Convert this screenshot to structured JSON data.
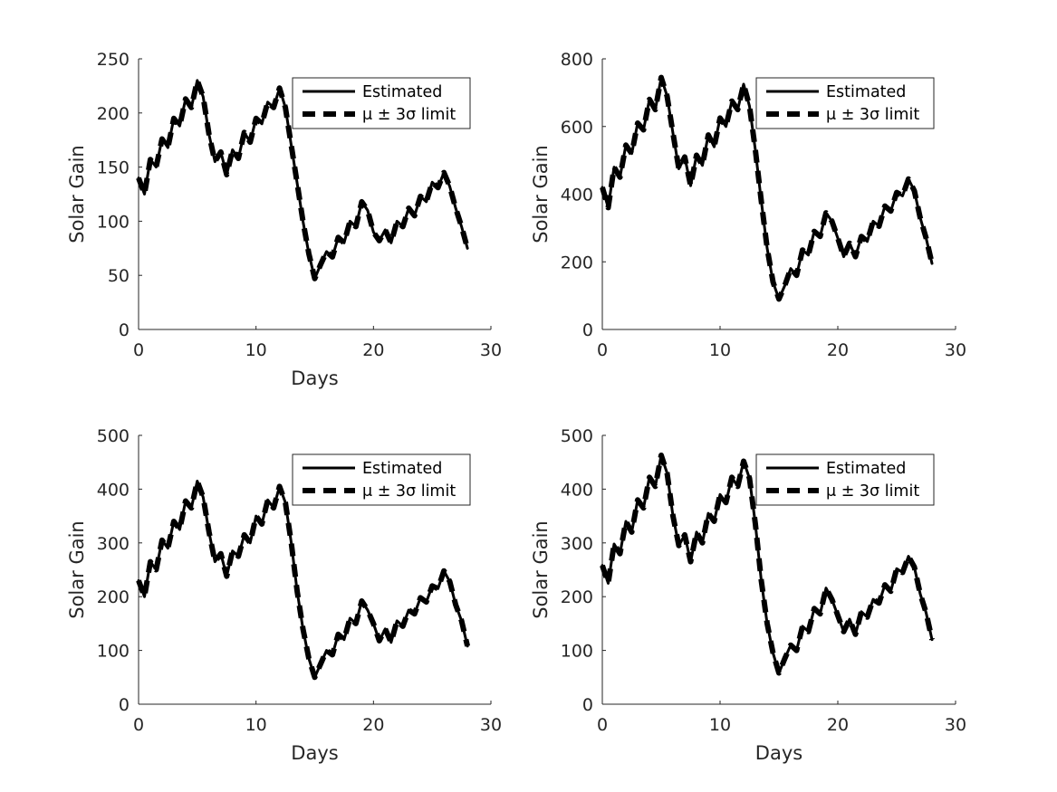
{
  "chart_data": [
    {
      "type": "line",
      "xlabel": "Days",
      "ylabel": "Solar Gain",
      "xlim": [
        0,
        30
      ],
      "ylim": [
        0,
        250
      ],
      "xticks": [
        0,
        10,
        20,
        30
      ],
      "yticks": [
        0,
        50,
        100,
        150,
        200,
        250
      ],
      "legend_position": "top-right",
      "series": [
        {
          "name": "Estimated",
          "style": "solid",
          "color": "#000000",
          "x": [
            0,
            0.5,
            1,
            1.5,
            2,
            2.5,
            3,
            3.5,
            4,
            4.5,
            5,
            5.5,
            6,
            6.5,
            7,
            7.5,
            8,
            8.5,
            9,
            9.5,
            10,
            10.5,
            11,
            11.5,
            12,
            12.5,
            13,
            13.5,
            14,
            14.5,
            15,
            15.5,
            16,
            16.5,
            17,
            17.5,
            18,
            18.5,
            19,
            19.5,
            20,
            20.5,
            21,
            21.5,
            22,
            22.5,
            23,
            23.5,
            24,
            24.5,
            25,
            25.5,
            26,
            26.5,
            27,
            27.5,
            28
          ],
          "y": [
            140,
            125,
            157,
            150,
            176,
            168,
            195,
            188,
            213,
            205,
            230,
            215,
            180,
            155,
            164,
            143,
            166,
            158,
            182,
            173,
            195,
            190,
            210,
            205,
            223,
            205,
            170,
            135,
            100,
            70,
            47,
            60,
            72,
            67,
            85,
            80,
            100,
            95,
            118,
            110,
            90,
            82,
            92,
            80,
            100,
            95,
            112,
            105,
            123,
            118,
            136,
            131,
            145,
            132,
            112,
            95,
            75
          ]
        },
        {
          "name": "μ ± 3σ limit",
          "style": "dashed",
          "color": "#000000",
          "x": [
            0,
            0.5,
            1,
            1.5,
            2,
            2.5,
            3,
            3.5,
            4,
            4.5,
            5,
            5.5,
            6,
            6.5,
            7,
            7.5,
            8,
            8.5,
            9,
            9.5,
            10,
            10.5,
            11,
            11.5,
            12,
            12.5,
            13,
            13.5,
            14,
            14.5,
            15,
            15.5,
            16,
            16.5,
            17,
            17.5,
            18,
            18.5,
            19,
            19.5,
            20,
            20.5,
            21,
            21.5,
            22,
            22.5,
            23,
            23.5,
            24,
            24.5,
            25,
            25.5,
            26,
            26.5,
            27,
            27.5,
            28
          ],
          "y": [
            140,
            125,
            157,
            150,
            176,
            168,
            195,
            188,
            213,
            205,
            230,
            215,
            180,
            155,
            164,
            143,
            166,
            158,
            182,
            173,
            195,
            190,
            210,
            205,
            223,
            205,
            170,
            135,
            100,
            70,
            47,
            60,
            72,
            67,
            85,
            80,
            100,
            95,
            118,
            110,
            90,
            82,
            92,
            80,
            100,
            95,
            112,
            105,
            123,
            118,
            136,
            131,
            145,
            132,
            112,
            95,
            75
          ]
        }
      ]
    },
    {
      "type": "line",
      "xlabel": "",
      "ylabel": "Solar Gain",
      "xlim": [
        0,
        30
      ],
      "ylim": [
        0,
        800
      ],
      "xticks": [
        0,
        10,
        20,
        30
      ],
      "yticks": [
        0,
        200,
        400,
        600,
        800
      ],
      "legend_position": "top-right",
      "series": [
        {
          "name": "Estimated",
          "style": "solid",
          "color": "#000000",
          "x": [
            0,
            0.5,
            1,
            1.5,
            2,
            2.5,
            3,
            3.5,
            4,
            4.5,
            5,
            5.5,
            6,
            6.5,
            7,
            7.5,
            8,
            8.5,
            9,
            9.5,
            10,
            10.5,
            11,
            11.5,
            12,
            12.5,
            13,
            13.5,
            14,
            14.5,
            15,
            15.5,
            16,
            16.5,
            17,
            17.5,
            18,
            18.5,
            19,
            19.5,
            20,
            20.5,
            21,
            21.5,
            22,
            22.5,
            23,
            23.5,
            24,
            24.5,
            25,
            25.5,
            26,
            26.5,
            27,
            27.5,
            28
          ],
          "y": [
            420,
            360,
            480,
            450,
            545,
            520,
            610,
            590,
            680,
            650,
            745,
            690,
            580,
            475,
            510,
            425,
            515,
            485,
            575,
            540,
            625,
            600,
            675,
            650,
            725,
            660,
            530,
            380,
            240,
            140,
            90,
            130,
            180,
            160,
            235,
            220,
            290,
            275,
            345,
            320,
            270,
            215,
            255,
            215,
            275,
            260,
            320,
            305,
            365,
            350,
            405,
            395,
            445,
            410,
            330,
            270,
            195
          ]
        },
        {
          "name": "μ ± 3σ limit",
          "style": "dashed",
          "color": "#000000",
          "x": [
            0,
            0.5,
            1,
            1.5,
            2,
            2.5,
            3,
            3.5,
            4,
            4.5,
            5,
            5.5,
            6,
            6.5,
            7,
            7.5,
            8,
            8.5,
            9,
            9.5,
            10,
            10.5,
            11,
            11.5,
            12,
            12.5,
            13,
            13.5,
            14,
            14.5,
            15,
            15.5,
            16,
            16.5,
            17,
            17.5,
            18,
            18.5,
            19,
            19.5,
            20,
            20.5,
            21,
            21.5,
            22,
            22.5,
            23,
            23.5,
            24,
            24.5,
            25,
            25.5,
            26,
            26.5,
            27,
            27.5,
            28
          ],
          "y": [
            420,
            360,
            480,
            450,
            545,
            520,
            610,
            590,
            680,
            650,
            745,
            690,
            580,
            475,
            510,
            425,
            515,
            485,
            575,
            540,
            625,
            600,
            675,
            650,
            725,
            660,
            530,
            380,
            240,
            140,
            90,
            130,
            180,
            160,
            235,
            220,
            290,
            275,
            345,
            320,
            270,
            215,
            255,
            215,
            275,
            260,
            320,
            305,
            365,
            350,
            405,
            395,
            445,
            410,
            330,
            270,
            195
          ]
        }
      ]
    },
    {
      "type": "line",
      "xlabel": "Days",
      "ylabel": "Solar Gain",
      "xlim": [
        0,
        30
      ],
      "ylim": [
        0,
        500
      ],
      "xticks": [
        0,
        10,
        20,
        30
      ],
      "yticks": [
        0,
        100,
        200,
        300,
        400,
        500
      ],
      "legend_position": "top-right",
      "series": [
        {
          "name": "Estimated",
          "style": "solid",
          "color": "#000000",
          "x": [
            0,
            0.5,
            1,
            1.5,
            2,
            2.5,
            3,
            3.5,
            4,
            4.5,
            5,
            5.5,
            6,
            6.5,
            7,
            7.5,
            8,
            8.5,
            9,
            9.5,
            10,
            10.5,
            11,
            11.5,
            12,
            12.5,
            13,
            13.5,
            14,
            14.5,
            15,
            15.5,
            16,
            16.5,
            17,
            17.5,
            18,
            18.5,
            19,
            19.5,
            20,
            20.5,
            21,
            21.5,
            22,
            22.5,
            23,
            23.5,
            24,
            24.5,
            25,
            25.5,
            26,
            26.5,
            27,
            27.5,
            28
          ],
          "y": [
            230,
            200,
            265,
            250,
            305,
            290,
            340,
            325,
            378,
            365,
            415,
            385,
            320,
            265,
            280,
            238,
            285,
            275,
            315,
            300,
            350,
            335,
            380,
            365,
            405,
            375,
            300,
            210,
            140,
            85,
            50,
            75,
            100,
            92,
            130,
            120,
            160,
            150,
            192,
            175,
            150,
            118,
            140,
            115,
            155,
            145,
            175,
            168,
            198,
            190,
            220,
            215,
            248,
            228,
            185,
            155,
            108
          ]
        },
        {
          "name": "μ ± 3σ limit",
          "style": "dashed",
          "color": "#000000",
          "x": [
            0,
            0.5,
            1,
            1.5,
            2,
            2.5,
            3,
            3.5,
            4,
            4.5,
            5,
            5.5,
            6,
            6.5,
            7,
            7.5,
            8,
            8.5,
            9,
            9.5,
            10,
            10.5,
            11,
            11.5,
            12,
            12.5,
            13,
            13.5,
            14,
            14.5,
            15,
            15.5,
            16,
            16.5,
            17,
            17.5,
            18,
            18.5,
            19,
            19.5,
            20,
            20.5,
            21,
            21.5,
            22,
            22.5,
            23,
            23.5,
            24,
            24.5,
            25,
            25.5,
            26,
            26.5,
            27,
            27.5,
            28
          ],
          "y": [
            230,
            200,
            265,
            250,
            305,
            290,
            340,
            325,
            378,
            365,
            415,
            385,
            320,
            265,
            280,
            238,
            285,
            275,
            315,
            300,
            350,
            335,
            380,
            365,
            405,
            375,
            300,
            210,
            140,
            85,
            50,
            75,
            100,
            92,
            130,
            120,
            160,
            150,
            192,
            175,
            150,
            118,
            140,
            115,
            155,
            145,
            175,
            168,
            198,
            190,
            220,
            215,
            248,
            228,
            185,
            155,
            108
          ]
        }
      ]
    },
    {
      "type": "line",
      "xlabel": "Days",
      "ylabel": "Solar Gain",
      "xlim": [
        0,
        30
      ],
      "ylim": [
        0,
        500
      ],
      "xticks": [
        0,
        10,
        20,
        30
      ],
      "yticks": [
        0,
        100,
        200,
        300,
        400,
        500
      ],
      "legend_position": "top-right",
      "series": [
        {
          "name": "Estimated",
          "style": "solid",
          "color": "#000000",
          "x": [
            0,
            0.5,
            1,
            1.5,
            2,
            2.5,
            3,
            3.5,
            4,
            4.5,
            5,
            5.5,
            6,
            6.5,
            7,
            7.5,
            8,
            8.5,
            9,
            9.5,
            10,
            10.5,
            11,
            11.5,
            12,
            12.5,
            13,
            13.5,
            14,
            14.5,
            15,
            15.5,
            16,
            16.5,
            17,
            17.5,
            18,
            18.5,
            19,
            19.5,
            20,
            20.5,
            21,
            21.5,
            22,
            22.5,
            23,
            23.5,
            24,
            24.5,
            25,
            25.5,
            26,
            26.5,
            27,
            27.5,
            28
          ],
          "y": [
            258,
            225,
            298,
            280,
            340,
            320,
            380,
            365,
            422,
            405,
            463,
            430,
            350,
            295,
            315,
            265,
            320,
            300,
            355,
            340,
            390,
            375,
            422,
            405,
            452,
            420,
            335,
            230,
            150,
            95,
            58,
            85,
            110,
            100,
            145,
            135,
            178,
            168,
            216,
            195,
            165,
            135,
            158,
            130,
            172,
            162,
            195,
            188,
            222,
            210,
            252,
            245,
            275,
            255,
            205,
            170,
            120
          ]
        },
        {
          "name": "μ ± 3σ limit",
          "style": "dashed",
          "color": "#000000",
          "x": [
            0,
            0.5,
            1,
            1.5,
            2,
            2.5,
            3,
            3.5,
            4,
            4.5,
            5,
            5.5,
            6,
            6.5,
            7,
            7.5,
            8,
            8.5,
            9,
            9.5,
            10,
            10.5,
            11,
            11.5,
            12,
            12.5,
            13,
            13.5,
            14,
            14.5,
            15,
            15.5,
            16,
            16.5,
            17,
            17.5,
            18,
            18.5,
            19,
            19.5,
            20,
            20.5,
            21,
            21.5,
            22,
            22.5,
            23,
            23.5,
            24,
            24.5,
            25,
            25.5,
            26,
            26.5,
            27,
            27.5,
            28
          ],
          "y": [
            258,
            225,
            298,
            280,
            340,
            320,
            380,
            365,
            422,
            405,
            463,
            430,
            350,
            295,
            315,
            265,
            320,
            300,
            355,
            340,
            390,
            375,
            422,
            405,
            452,
            420,
            335,
            230,
            150,
            95,
            58,
            85,
            110,
            100,
            145,
            135,
            178,
            168,
            216,
            195,
            165,
            135,
            158,
            130,
            172,
            162,
            195,
            188,
            222,
            210,
            252,
            245,
            275,
            255,
            205,
            170,
            120
          ]
        }
      ]
    }
  ]
}
